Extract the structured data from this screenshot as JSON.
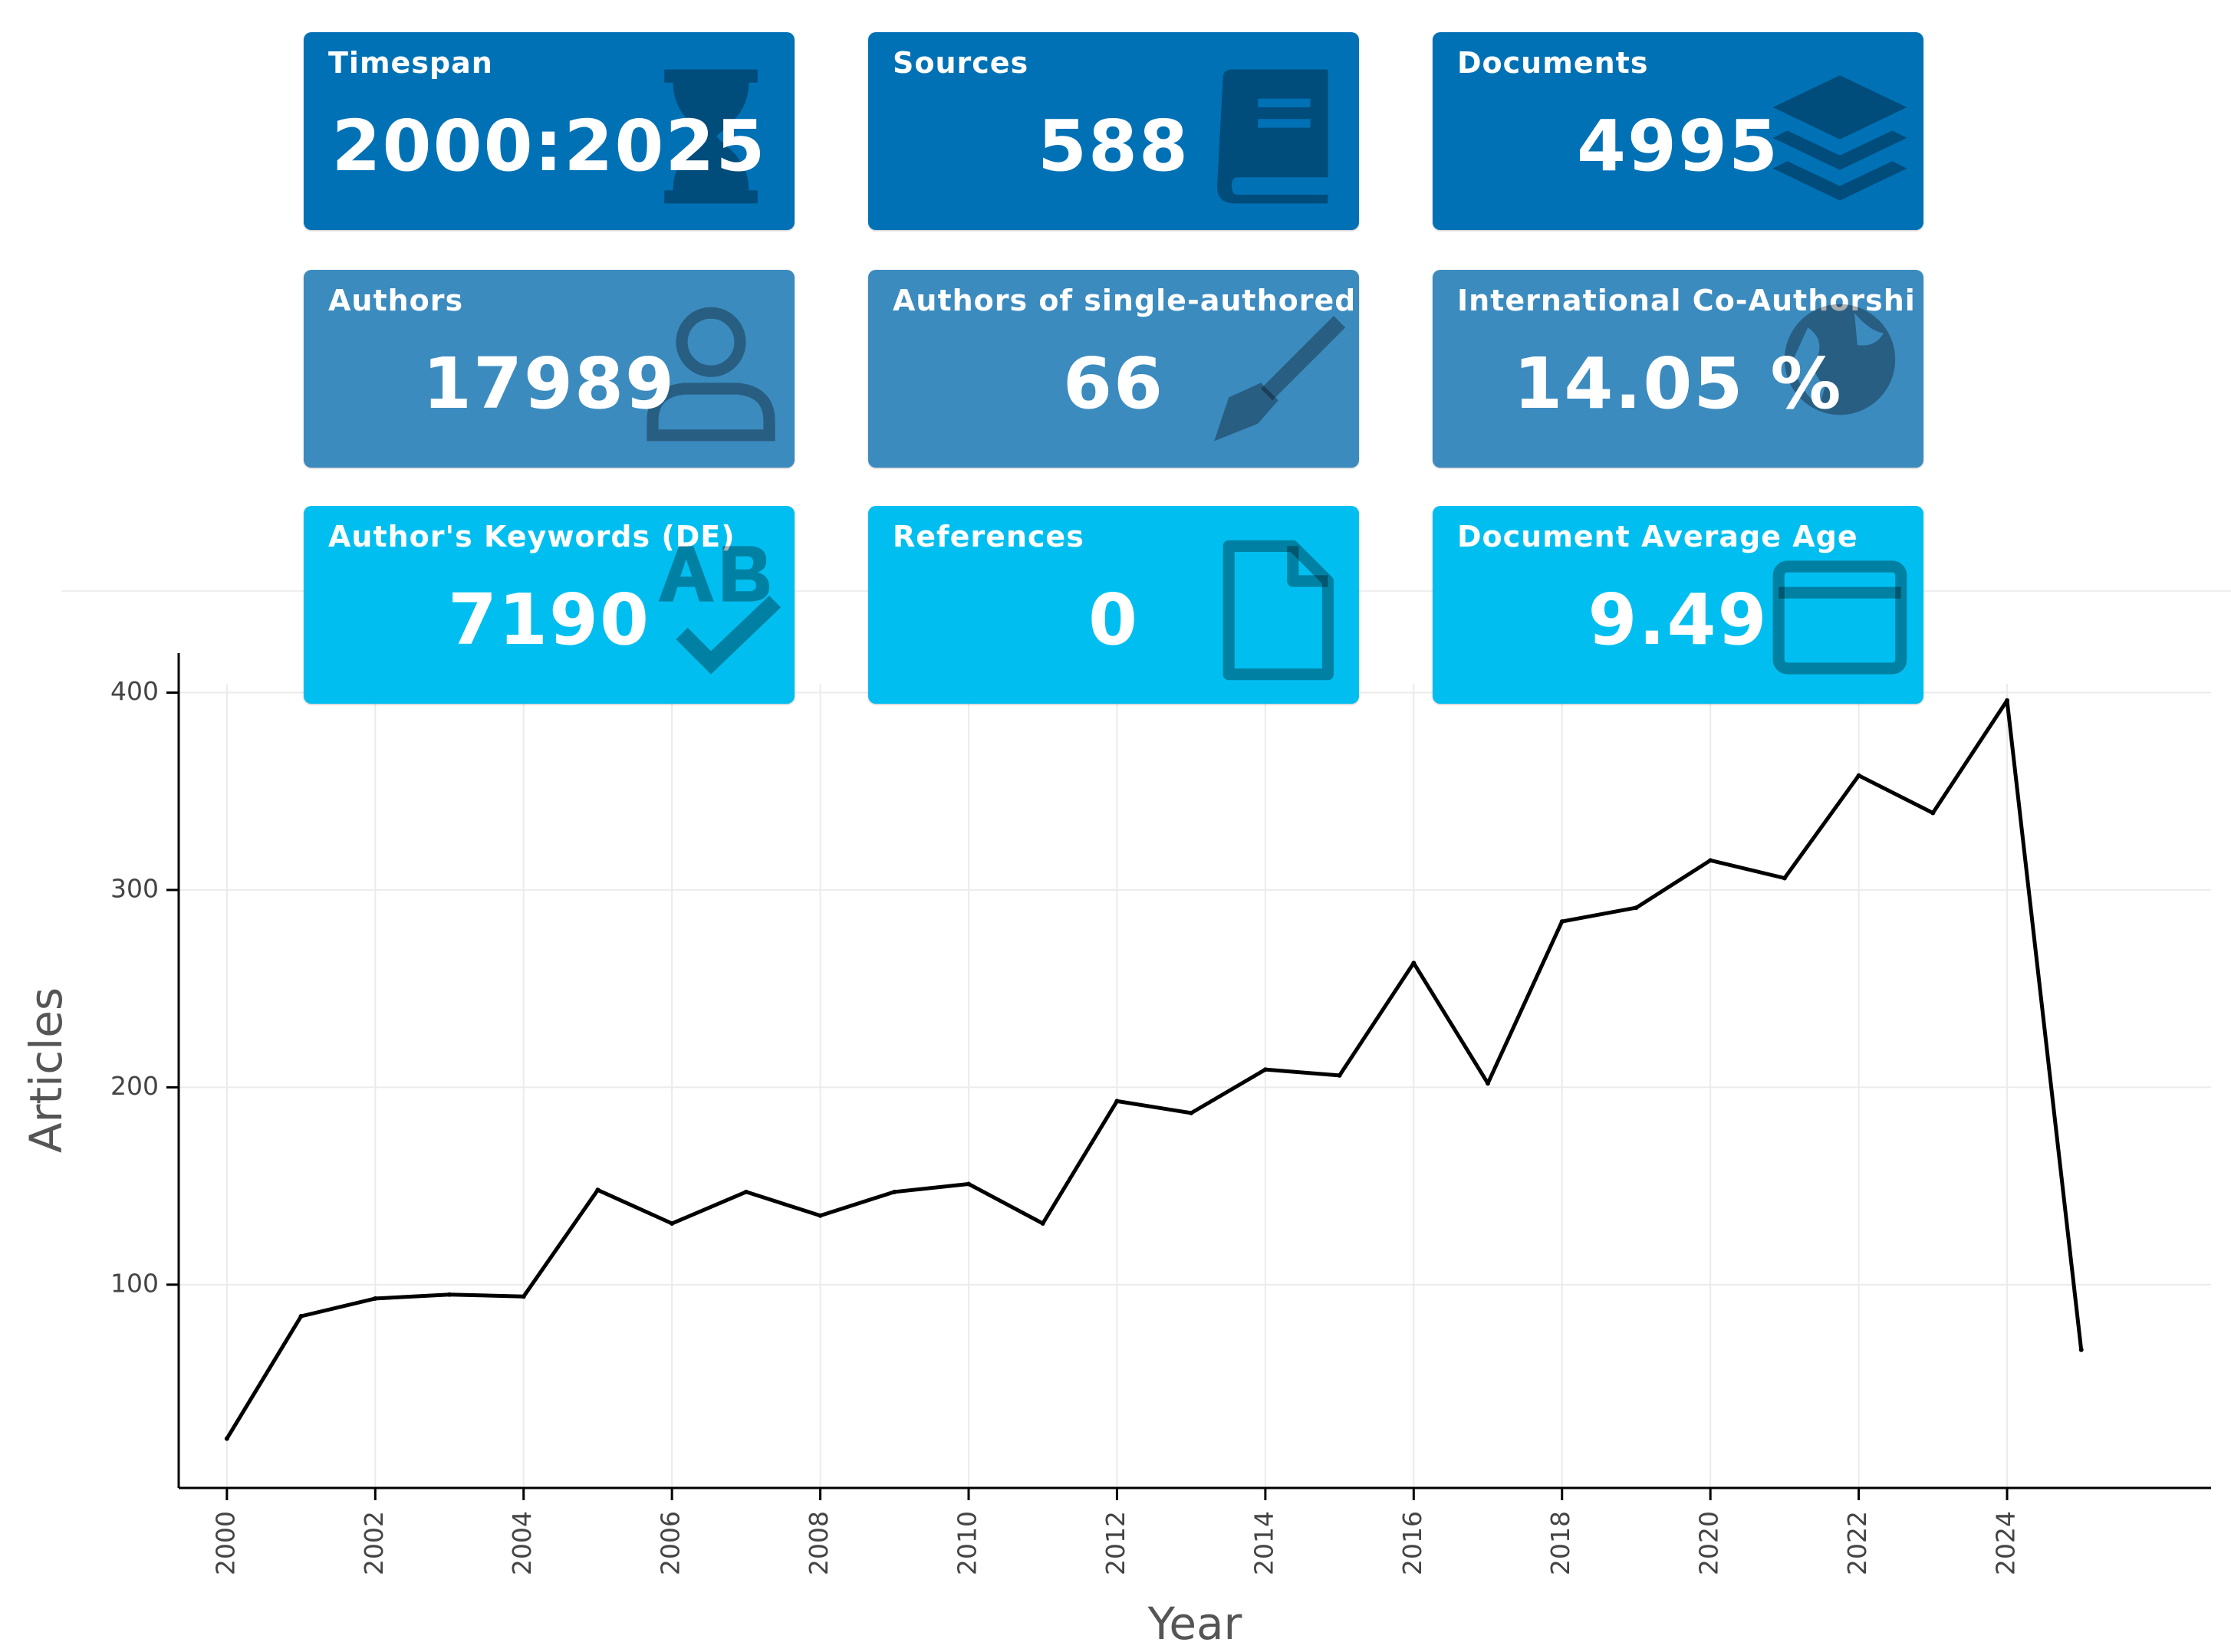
{
  "colors": {
    "row1": "#0071b5",
    "row2": "#3b8bbf",
    "row3": "#00bff0",
    "icon_shade": "rgba(0,0,0,0.32)",
    "line": "#000000",
    "axis": "#000000",
    "grid": "#ebebeb"
  },
  "cards": [
    {
      "title": "Timespan",
      "value": "2000:2025",
      "icon": "hourglass-icon"
    },
    {
      "title": "Sources",
      "value": "588",
      "icon": "book-icon"
    },
    {
      "title": "Documents",
      "value": "4995",
      "icon": "layers-icon"
    },
    {
      "title": "Authors",
      "value": "17989",
      "icon": "user-icon"
    },
    {
      "title": "Authors of single-authored",
      "value": "66",
      "icon": "pen-icon"
    },
    {
      "title": "International Co-Authorship",
      "value": "14.05 %",
      "icon": "globe-icon"
    },
    {
      "title": "Author's Keywords (DE)",
      "value": "7190",
      "icon": "spellcheck-icon"
    },
    {
      "title": "References",
      "value": "0",
      "icon": "file-icon"
    },
    {
      "title": "Document Average Age",
      "value": "9.49",
      "icon": "calendar-icon"
    }
  ],
  "chart_data": {
    "type": "line",
    "title": "",
    "xlabel": "Year",
    "ylabel": "Articles",
    "x": [
      2000,
      2001,
      2002,
      2003,
      2004,
      2005,
      2006,
      2007,
      2008,
      2009,
      2010,
      2011,
      2012,
      2013,
      2014,
      2015,
      2016,
      2017,
      2018,
      2019,
      2020,
      2021,
      2022,
      2023,
      2024,
      2025
    ],
    "series": [
      {
        "name": "Articles",
        "values": [
          22,
          84,
          93,
          95,
          94,
          148,
          131,
          147,
          135,
          147,
          151,
          131,
          193,
          187,
          209,
          206,
          263,
          202,
          284,
          291,
          315,
          306,
          358,
          339,
          396,
          67
        ]
      }
    ],
    "xticks": [
      "2000",
      "2002",
      "2004",
      "2006",
      "2008",
      "2010",
      "2012",
      "2014",
      "2016",
      "2018",
      "2020",
      "2022",
      "2024"
    ],
    "yticks": [
      "100",
      "200",
      "300",
      "400"
    ],
    "xlim": [
      1999.35,
      2026.75
    ],
    "ylim": [
      -3,
      420
    ],
    "grid": true
  }
}
